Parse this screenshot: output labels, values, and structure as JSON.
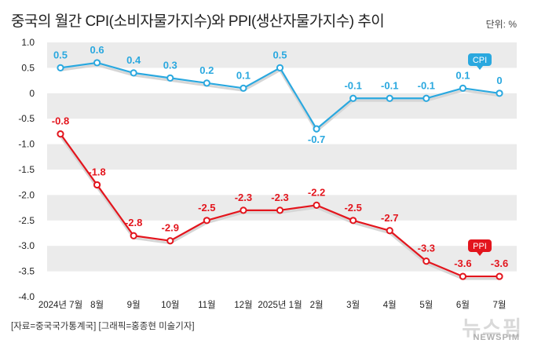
{
  "header": {
    "title": "중국의 월간 CPI(소비자물가지수)와 PPI(생산자물가지수) 추이",
    "unit": "단위: %"
  },
  "footer": {
    "source": "[자료=중국국가통계국] [그래픽=홍종현 미술기자]",
    "watermark_main": "뉴스핌",
    "watermark_sub": "NEWSPIM"
  },
  "colors": {
    "cpi": "#2aa8df",
    "ppi": "#e3151d",
    "band": "#ebebeb"
  },
  "chart_data": {
    "type": "line",
    "categories": [
      "2024년 7월",
      "8월",
      "9월",
      "10월",
      "11월",
      "12월",
      "2025년 1월",
      "2월",
      "3월",
      "4월",
      "5월",
      "6월",
      "7월"
    ],
    "ylim": [
      -4.0,
      1.0
    ],
    "yticks": [
      "1.0",
      "0.5",
      "0",
      "-0.5",
      "-1.0",
      "-1.5",
      "-2.0",
      "-2.5",
      "-3.0",
      "-3.5",
      "-4.0"
    ],
    "grid": "horizontal bands",
    "series": [
      {
        "name": "CPI",
        "values": [
          0.5,
          0.6,
          0.4,
          0.3,
          0.2,
          0.1,
          0.5,
          -0.7,
          -0.1,
          -0.1,
          -0.1,
          0.1,
          0
        ],
        "labels": [
          "0.5",
          "0.6",
          "0.4",
          "0.3",
          "0.2",
          "0.1",
          "0.5",
          "-0.7",
          "-0.1",
          "-0.1",
          "-0.1",
          "0.1",
          "0"
        ]
      },
      {
        "name": "PPI",
        "values": [
          -0.8,
          -1.8,
          -2.8,
          -2.9,
          -2.5,
          -2.3,
          -2.3,
          -2.2,
          -2.5,
          -2.7,
          -3.3,
          -3.6,
          -3.6
        ],
        "labels": [
          "-0.8",
          "-1.8",
          "-2.8",
          "-2.9",
          "-2.5",
          "-2.3",
          "-2.3",
          "-2.2",
          "-2.5",
          "-2.7",
          "-3.3",
          "-3.6",
          "-3.6"
        ]
      }
    ],
    "legend": "callout tags near line ends"
  }
}
